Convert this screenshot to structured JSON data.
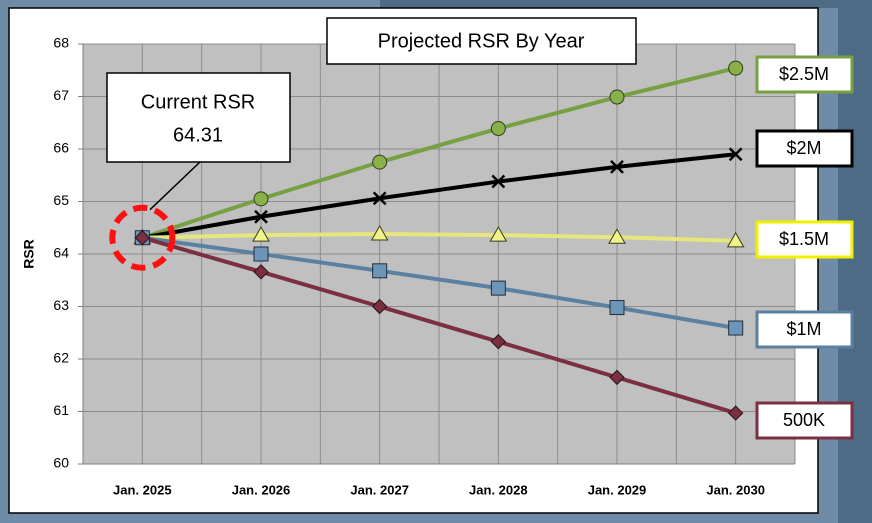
{
  "chart_data": {
    "type": "line",
    "title": "Projected RSR By Year",
    "y_label": "RSR",
    "annotation": {
      "label": "Current RSR",
      "value": 64.31
    },
    "categories": [
      "Jan. 2025",
      "Jan. 2026",
      "Jan. 2027",
      "Jan. 2028",
      "Jan. 2029",
      "Jan. 2030"
    ],
    "series": [
      {
        "name": "$2.5M",
        "color": "#77a044",
        "marker": "circle",
        "values": [
          64.31,
          65.05,
          65.75,
          66.39,
          66.99,
          67.54
        ]
      },
      {
        "name": "$2M",
        "color": "#000000",
        "marker": "x",
        "values": [
          64.31,
          64.71,
          65.06,
          65.38,
          65.66,
          65.9
        ]
      },
      {
        "name": "$1.5M",
        "color": "#e6e67a",
        "marker": "triangle",
        "values": [
          64.31,
          64.36,
          64.38,
          64.36,
          64.32,
          64.25
        ]
      },
      {
        "name": "$1M",
        "color": "#5b80a0",
        "marker": "square",
        "values": [
          64.31,
          64.0,
          63.68,
          63.35,
          62.98,
          62.59
        ]
      },
      {
        "name": "500K",
        "color": "#7a3040",
        "marker": "diamond",
        "values": [
          64.31,
          63.66,
          63.0,
          62.33,
          61.65,
          60.97
        ]
      }
    ],
    "ylim": [
      60,
      68
    ],
    "yticks": [
      60,
      61,
      62,
      63,
      64,
      65,
      66,
      67,
      68
    ],
    "grid": true
  }
}
